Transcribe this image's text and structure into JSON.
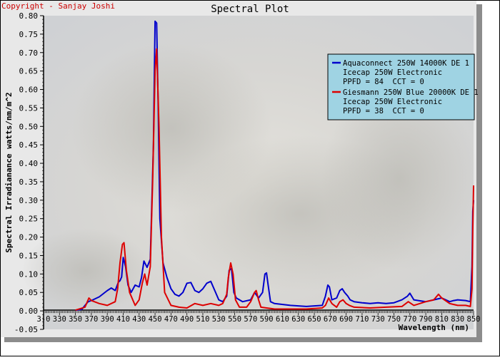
{
  "header": {
    "copyright": "Copyright - Sanjay Joshi",
    "title": "Spectral Plot"
  },
  "chart_data": {
    "type": "line",
    "title": "Spectral Plot",
    "xlabel": "Wavelength (nm)",
    "ylabel": "Spectral Irradianance watts/nm/m^2",
    "xlim": [
      310,
      850
    ],
    "ylim": [
      -0.05,
      0.8
    ],
    "x_ticks": [
      310,
      330,
      350,
      370,
      390,
      410,
      430,
      450,
      470,
      490,
      510,
      530,
      550,
      570,
      590,
      610,
      630,
      650,
      670,
      690,
      710,
      730,
      750,
      770,
      790,
      810,
      830,
      850
    ],
    "x_tick_labels": [
      "3-0",
      "330",
      "350",
      "370",
      "390",
      "410",
      "430",
      "450",
      "470",
      "490",
      "510",
      "530",
      "550",
      "570",
      "590",
      "610",
      "630",
      "650",
      "670",
      "690",
      "710",
      "730",
      "750",
      "770",
      "790",
      "810",
      "830",
      "850"
    ],
    "y_ticks": [
      -0.05,
      0.0,
      0.05,
      0.1,
      0.15,
      0.2,
      0.25,
      0.3,
      0.35,
      0.4,
      0.45,
      0.5,
      0.55,
      0.6,
      0.65,
      0.7,
      0.75,
      0.8
    ],
    "y_tick_labels": [
      "-0.05",
      "0.00",
      "0.05",
      "0.10",
      "0.15",
      "0.20",
      "0.25",
      "0.30",
      "0.35",
      "0.40",
      "0.45",
      "0.50",
      "0.55",
      "0.60",
      "0.65",
      "0.70",
      "0.75",
      "0.80"
    ],
    "grid": false,
    "legend_position": "top-right",
    "series": [
      {
        "name": "Aquaconnect 250W 14000K DE 1",
        "legend_lines": [
          "Aquaconnect 250W 14000K DE 1",
          "Icecap 250W Electronic",
          "PPFD = 84  CCT = 0"
        ],
        "color": "#0000cc",
        "x": [
          350,
          358,
          362,
          366,
          370,
          380,
          390,
          395,
          400,
          404,
          406,
          408,
          410,
          413,
          416,
          420,
          425,
          430,
          433,
          436,
          440,
          444,
          448,
          450,
          452,
          454,
          456,
          460,
          465,
          470,
          475,
          480,
          485,
          490,
          495,
          500,
          505,
          510,
          515,
          520,
          525,
          530,
          535,
          540,
          543,
          546,
          549,
          552,
          560,
          570,
          575,
          580,
          585,
          588,
          590,
          592,
          595,
          600,
          620,
          640,
          660,
          664,
          667,
          669,
          672,
          678,
          682,
          685,
          688,
          692,
          695,
          700,
          710,
          720,
          730,
          740,
          750,
          760,
          767,
          770,
          775,
          790,
          800,
          810,
          820,
          825,
          830,
          840,
          846,
          848,
          849,
          850
        ],
        "y": [
          0.002,
          0.004,
          0.015,
          0.025,
          0.028,
          0.038,
          0.055,
          0.062,
          0.055,
          0.078,
          0.082,
          0.092,
          0.145,
          0.12,
          0.07,
          0.05,
          0.07,
          0.065,
          0.09,
          0.135,
          0.118,
          0.14,
          0.45,
          0.785,
          0.78,
          0.55,
          0.25,
          0.13,
          0.09,
          0.06,
          0.045,
          0.04,
          0.05,
          0.075,
          0.077,
          0.055,
          0.05,
          0.06,
          0.075,
          0.08,
          0.055,
          0.03,
          0.025,
          0.04,
          0.11,
          0.115,
          0.05,
          0.035,
          0.025,
          0.03,
          0.05,
          0.035,
          0.05,
          0.1,
          0.103,
          0.07,
          0.025,
          0.02,
          0.015,
          0.012,
          0.015,
          0.04,
          0.07,
          0.065,
          0.03,
          0.035,
          0.055,
          0.06,
          0.05,
          0.04,
          0.03,
          0.025,
          0.022,
          0.02,
          0.022,
          0.02,
          0.022,
          0.03,
          0.04,
          0.048,
          0.03,
          0.025,
          0.03,
          0.035,
          0.025,
          0.028,
          0.03,
          0.028,
          0.025,
          0.12,
          0.27,
          0.3
        ]
      },
      {
        "name": "Giesmann 250W Blue 20000K DE 1",
        "legend_lines": [
          "Giesmann 250W Blue 20000K DE 1",
          "Icecap 250W Electronic",
          "PPFD = 38  CCT = 0"
        ],
        "color": "#dd0000",
        "x": [
          350,
          362,
          365,
          367,
          370,
          380,
          390,
          400,
          403,
          406,
          409,
          411,
          414,
          418,
          425,
          430,
          434,
          437,
          440,
          444,
          447,
          450,
          452,
          455,
          458,
          462,
          470,
          480,
          490,
          500,
          510,
          520,
          530,
          535,
          540,
          542,
          545,
          548,
          551,
          556,
          565,
          570,
          575,
          577,
          580,
          583,
          590,
          600,
          620,
          640,
          660,
          664,
          668,
          672,
          678,
          682,
          686,
          690,
          694,
          700,
          720,
          740,
          760,
          768,
          775,
          790,
          800,
          806,
          810,
          820,
          830,
          840,
          846,
          848,
          849,
          850
        ],
        "y": [
          0.002,
          0.01,
          0.025,
          0.035,
          0.028,
          0.02,
          0.015,
          0.025,
          0.06,
          0.13,
          0.18,
          0.185,
          0.11,
          0.05,
          0.015,
          0.03,
          0.075,
          0.1,
          0.07,
          0.12,
          0.35,
          0.65,
          0.71,
          0.5,
          0.2,
          0.05,
          0.015,
          0.01,
          0.008,
          0.02,
          0.015,
          0.02,
          0.015,
          0.02,
          0.045,
          0.09,
          0.13,
          0.1,
          0.03,
          0.01,
          0.01,
          0.025,
          0.05,
          0.055,
          0.03,
          0.01,
          0.008,
          0.005,
          0.005,
          0.005,
          0.008,
          0.015,
          0.035,
          0.02,
          0.01,
          0.025,
          0.03,
          0.02,
          0.015,
          0.01,
          0.008,
          0.01,
          0.012,
          0.025,
          0.015,
          0.025,
          0.03,
          0.045,
          0.035,
          0.02,
          0.015,
          0.015,
          0.012,
          0.06,
          0.22,
          0.34
        ]
      }
    ]
  }
}
